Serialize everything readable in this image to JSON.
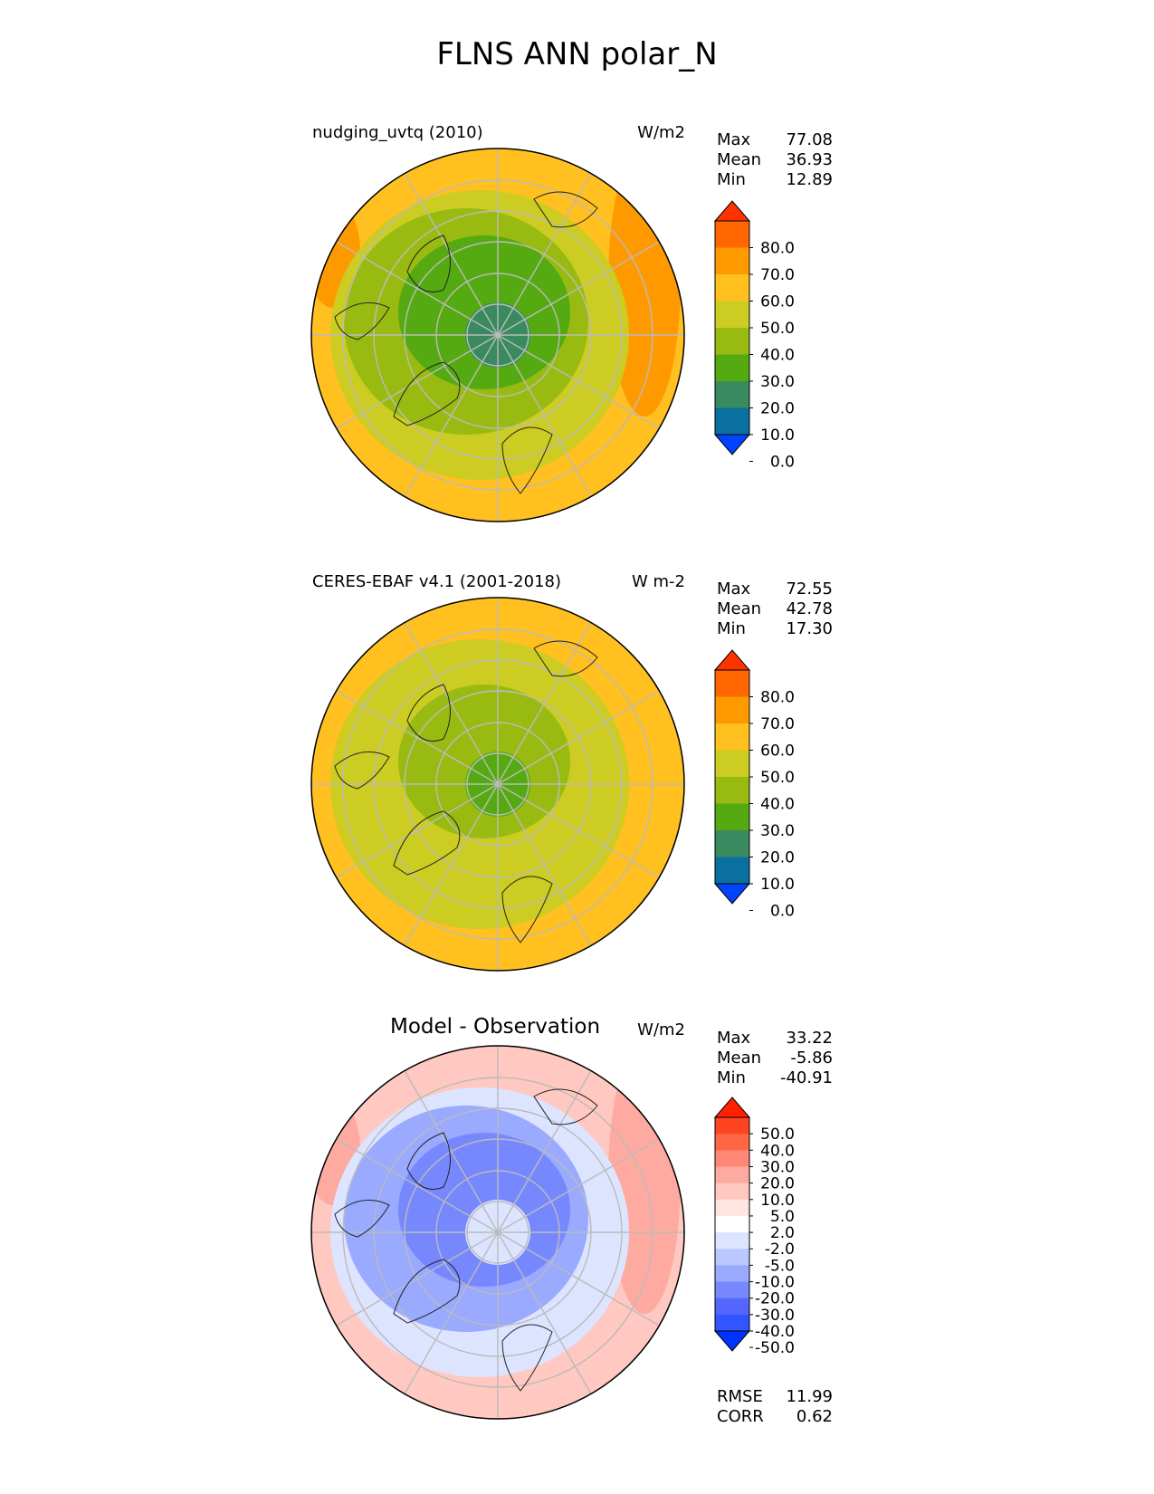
{
  "title": "FLNS ANN polar_N",
  "panels": [
    {
      "title": "nudging_uvtq (2010)",
      "units": "W/m2",
      "stats": [
        {
          "label": "Max",
          "value": "77.08"
        },
        {
          "label": "Mean",
          "value": "36.93"
        },
        {
          "label": "Min",
          "value": "12.89"
        }
      ],
      "colorbar": {
        "labels": [
          "80.0",
          "70.0",
          "60.0",
          "50.0",
          "40.0",
          "30.0",
          "20.0",
          "10.0",
          "0.0"
        ],
        "colors": [
          "#ff3300",
          "#ff6600",
          "#ff9900",
          "#ffc020",
          "#cccc22",
          "#99bb11",
          "#55aa11",
          "#3a8a5f",
          "#0a70a0",
          "#0044ff"
        ]
      },
      "field": {
        "ocean_ring": "#ffc020",
        "mid_ring": "#cccc22",
        "inner_ring": "#99bb11",
        "arctic": "#55aa11",
        "pole": "#3a8a5f",
        "warm_edge": "#ff9900"
      }
    },
    {
      "title": "CERES-EBAF v4.1 (2001-2018)",
      "units": "W m-2",
      "stats": [
        {
          "label": "Max",
          "value": "72.55"
        },
        {
          "label": "Mean",
          "value": "42.78"
        },
        {
          "label": "Min",
          "value": "17.30"
        }
      ],
      "colorbar": {
        "labels": [
          "80.0",
          "70.0",
          "60.0",
          "50.0",
          "40.0",
          "30.0",
          "20.0",
          "10.0",
          "0.0"
        ],
        "colors": [
          "#ff3300",
          "#ff6600",
          "#ff9900",
          "#ffc020",
          "#cccc22",
          "#99bb11",
          "#55aa11",
          "#3a8a5f",
          "#0a70a0",
          "#0044ff"
        ]
      },
      "field": {
        "ocean_ring": "#ffc020",
        "mid_ring": "#cccc22",
        "inner_ring": "#cccc22",
        "arctic": "#99bb11",
        "pole": "#55aa11",
        "warm_edge": "#ffc020"
      }
    },
    {
      "title": "Model - Observation",
      "units": "W/m2",
      "stats": [
        {
          "label": "Max",
          "value": "33.22"
        },
        {
          "label": "Mean",
          "value": "-5.86"
        },
        {
          "label": "Min",
          "value": "-40.91"
        }
      ],
      "colorbar": {
        "labels": [
          "50.0",
          "40.0",
          "30.0",
          "20.0",
          "10.0",
          "5.0",
          "2.0",
          "-2.0",
          "-5.0",
          "-10.0",
          "-20.0",
          "-30.0",
          "-40.0",
          "-50.0"
        ],
        "colors": [
          "#ff2200",
          "#ff4422",
          "#ff6644",
          "#ff8877",
          "#ffaaa0",
          "#ffc8c0",
          "#ffe4e0",
          "#ffffff",
          "#dde4ff",
          "#bbc8ff",
          "#99aaff",
          "#7788ff",
          "#5566ff",
          "#3355ff",
          "#0033ff"
        ]
      },
      "field": {
        "ocean_ring": "#ffc8c0",
        "mid_ring": "#dde4ff",
        "inner_ring": "#99aaff",
        "arctic": "#7788ff",
        "pole": "#dde4ff",
        "warm_edge": "#ffaaa0"
      },
      "summary": [
        {
          "label": "RMSE",
          "value": "11.99"
        },
        {
          "label": "CORR",
          "value": "0.62"
        }
      ]
    }
  ]
}
